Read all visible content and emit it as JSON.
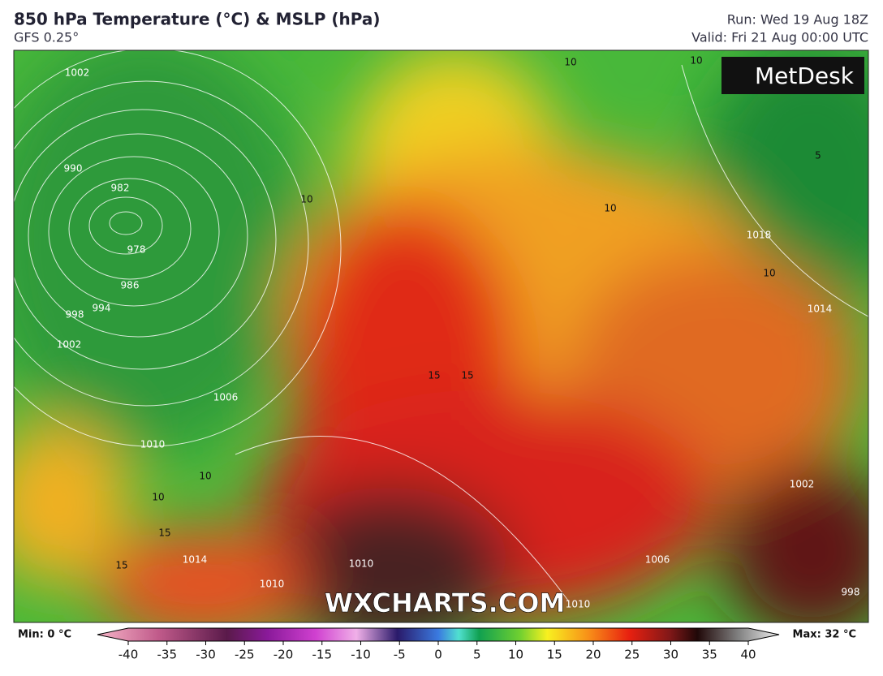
{
  "header": {
    "title": "850 hPa Temperature (°C) & MSLP (hPa)",
    "model": "GFS 0.25°",
    "run": "Run: Wed 19 Aug 18Z",
    "valid": "Valid: Fri 21 Aug 00:00 UTC"
  },
  "logo": "MetDesk",
  "watermark": "WXCHARTS.COM",
  "colorbar": {
    "min_label": "Min: 0 °C",
    "max_label": "Max: 32 °C",
    "ticks": [
      -40,
      -35,
      -30,
      -25,
      -20,
      -15,
      -10,
      -5,
      0,
      5,
      10,
      15,
      20,
      25,
      30,
      35,
      40
    ]
  },
  "map": {
    "isobar_labels": [
      1002,
      990,
      982,
      978,
      986,
      994,
      998,
      1002,
      1006,
      1010,
      1014,
      1010,
      1010,
      1010,
      1006,
      1002,
      998,
      1018,
      1014
    ],
    "isotherm_labels": [
      10,
      10,
      10,
      10,
      10,
      10,
      10,
      15,
      15,
      15,
      15,
      5
    ]
  }
}
